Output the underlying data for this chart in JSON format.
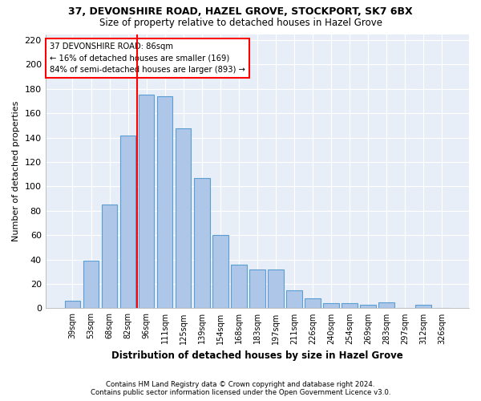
{
  "title1": "37, DEVONSHIRE ROAD, HAZEL GROVE, STOCKPORT, SK7 6BX",
  "title2": "Size of property relative to detached houses in Hazel Grove",
  "xlabel": "Distribution of detached houses by size in Hazel Grove",
  "ylabel": "Number of detached properties",
  "footnote1": "Contains HM Land Registry data © Crown copyright and database right 2024.",
  "footnote2": "Contains public sector information licensed under the Open Government Licence v3.0.",
  "categories": [
    "39sqm",
    "53sqm",
    "68sqm",
    "82sqm",
    "96sqm",
    "111sqm",
    "125sqm",
    "139sqm",
    "154sqm",
    "168sqm",
    "183sqm",
    "197sqm",
    "211sqm",
    "226sqm",
    "240sqm",
    "254sqm",
    "269sqm",
    "283sqm",
    "297sqm",
    "312sqm",
    "326sqm"
  ],
  "values": [
    6,
    39,
    85,
    142,
    175,
    174,
    148,
    107,
    60,
    36,
    32,
    32,
    15,
    8,
    4,
    4,
    3,
    5,
    0,
    3,
    0
  ],
  "bar_color": "#aec6e8",
  "bar_edge_color": "#5a9fd4",
  "bg_color": "#e8eef7",
  "grid_color": "#ffffff",
  "vline_x": 3.5,
  "vline_color": "red",
  "annotation_line1": "37 DEVONSHIRE ROAD: 86sqm",
  "annotation_line2": "← 16% of detached houses are smaller (169)",
  "annotation_line3": "84% of semi-detached houses are larger (893) →",
  "annotation_box_color": "white",
  "annotation_box_edge": "red",
  "ylim": [
    0,
    225
  ],
  "yticks": [
    0,
    20,
    40,
    60,
    80,
    100,
    120,
    140,
    160,
    180,
    200,
    220
  ]
}
